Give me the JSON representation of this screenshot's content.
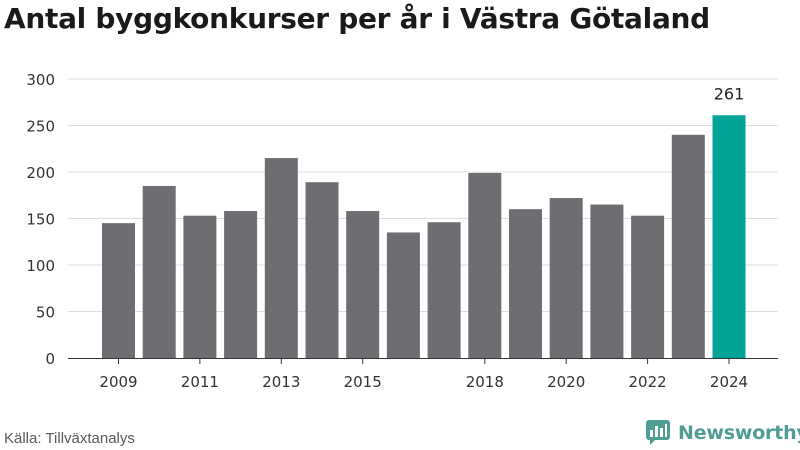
{
  "title": "Antal byggkonkurser per år i Västra Götaland",
  "source": "Källa: Tillväxtanalys",
  "brand": "Newsworthy",
  "colors": {
    "bar": "#6e6d72",
    "highlight": "#00a398",
    "grid": "#dddddd",
    "axis": "#333333",
    "brand": "#4f9d95"
  },
  "chart_data": {
    "type": "bar",
    "categories": [
      "2009",
      "2010",
      "2011",
      "2012",
      "2013",
      "2014",
      "2015",
      "2016",
      "2017",
      "2018",
      "2019",
      "2020",
      "2021",
      "2022",
      "2023",
      "2024"
    ],
    "values": [
      145,
      185,
      153,
      158,
      215,
      189,
      158,
      135,
      146,
      199,
      160,
      172,
      165,
      153,
      240,
      261
    ],
    "x_tick_labels": [
      "2009",
      "2011",
      "2013",
      "2015",
      "2018",
      "2020",
      "2022",
      "2024"
    ],
    "y_ticks": [
      0,
      50,
      100,
      150,
      200,
      250,
      300
    ],
    "ylim": [
      0,
      300
    ],
    "highlight_category": "2024",
    "data_labels": [
      {
        "category": "2024",
        "text": "261"
      }
    ],
    "xlabel": "",
    "ylabel": "",
    "grid": true
  }
}
